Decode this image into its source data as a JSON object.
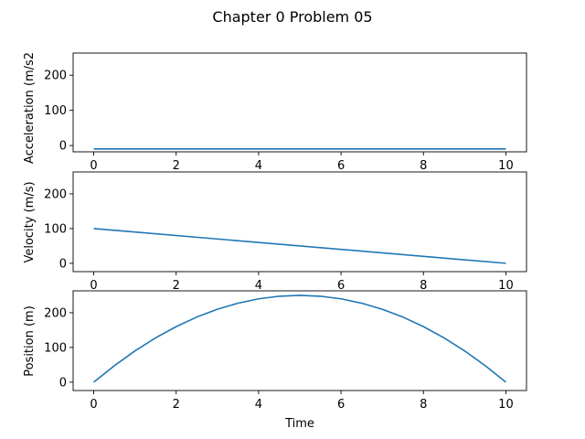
{
  "title": "Chapter 0 Problem 05",
  "chart_data": [
    {
      "type": "line",
      "ylabel": "Acceleration (m/s2",
      "xlabel": "",
      "xlim": [
        -0.5,
        10.5
      ],
      "ylim": [
        -18,
        263
      ],
      "xticks": [
        0,
        2,
        4,
        6,
        8,
        10
      ],
      "yticks": [
        0,
        100,
        200
      ],
      "grid": false,
      "series": [
        {
          "color": "#1f77b4",
          "x": [
            0,
            10
          ],
          "y": [
            -9.8,
            -9.8
          ]
        }
      ]
    },
    {
      "type": "line",
      "ylabel": "Velocity (m/s)",
      "xlabel": "",
      "xlim": [
        -0.5,
        10.5
      ],
      "ylim": [
        -24,
        263
      ],
      "xticks": [
        0,
        2,
        4,
        6,
        8,
        10
      ],
      "yticks": [
        0,
        100,
        200
      ],
      "grid": false,
      "series": [
        {
          "color": "#1f77b4",
          "x": [
            0,
            10
          ],
          "y": [
            100,
            0
          ]
        }
      ]
    },
    {
      "type": "line",
      "ylabel": "Position (m)",
      "xlabel": "Time",
      "xlim": [
        -0.5,
        10.5
      ],
      "ylim": [
        -24,
        263
      ],
      "xticks": [
        0,
        2,
        4,
        6,
        8,
        10
      ],
      "yticks": [
        0,
        100,
        200
      ],
      "grid": false,
      "series": [
        {
          "color": "#1f77b4",
          "x": [
            0,
            0.5,
            1,
            1.5,
            2,
            2.5,
            3,
            3.5,
            4,
            4.5,
            5,
            5.5,
            6,
            6.5,
            7,
            7.5,
            8,
            8.5,
            9,
            9.5,
            10
          ],
          "y": [
            0,
            47.5,
            90,
            127.5,
            160,
            187.5,
            210,
            227.5,
            240,
            247.5,
            250,
            247.5,
            240,
            227.5,
            210,
            187.5,
            160,
            127.5,
            90,
            47.5,
            0
          ]
        }
      ]
    }
  ]
}
